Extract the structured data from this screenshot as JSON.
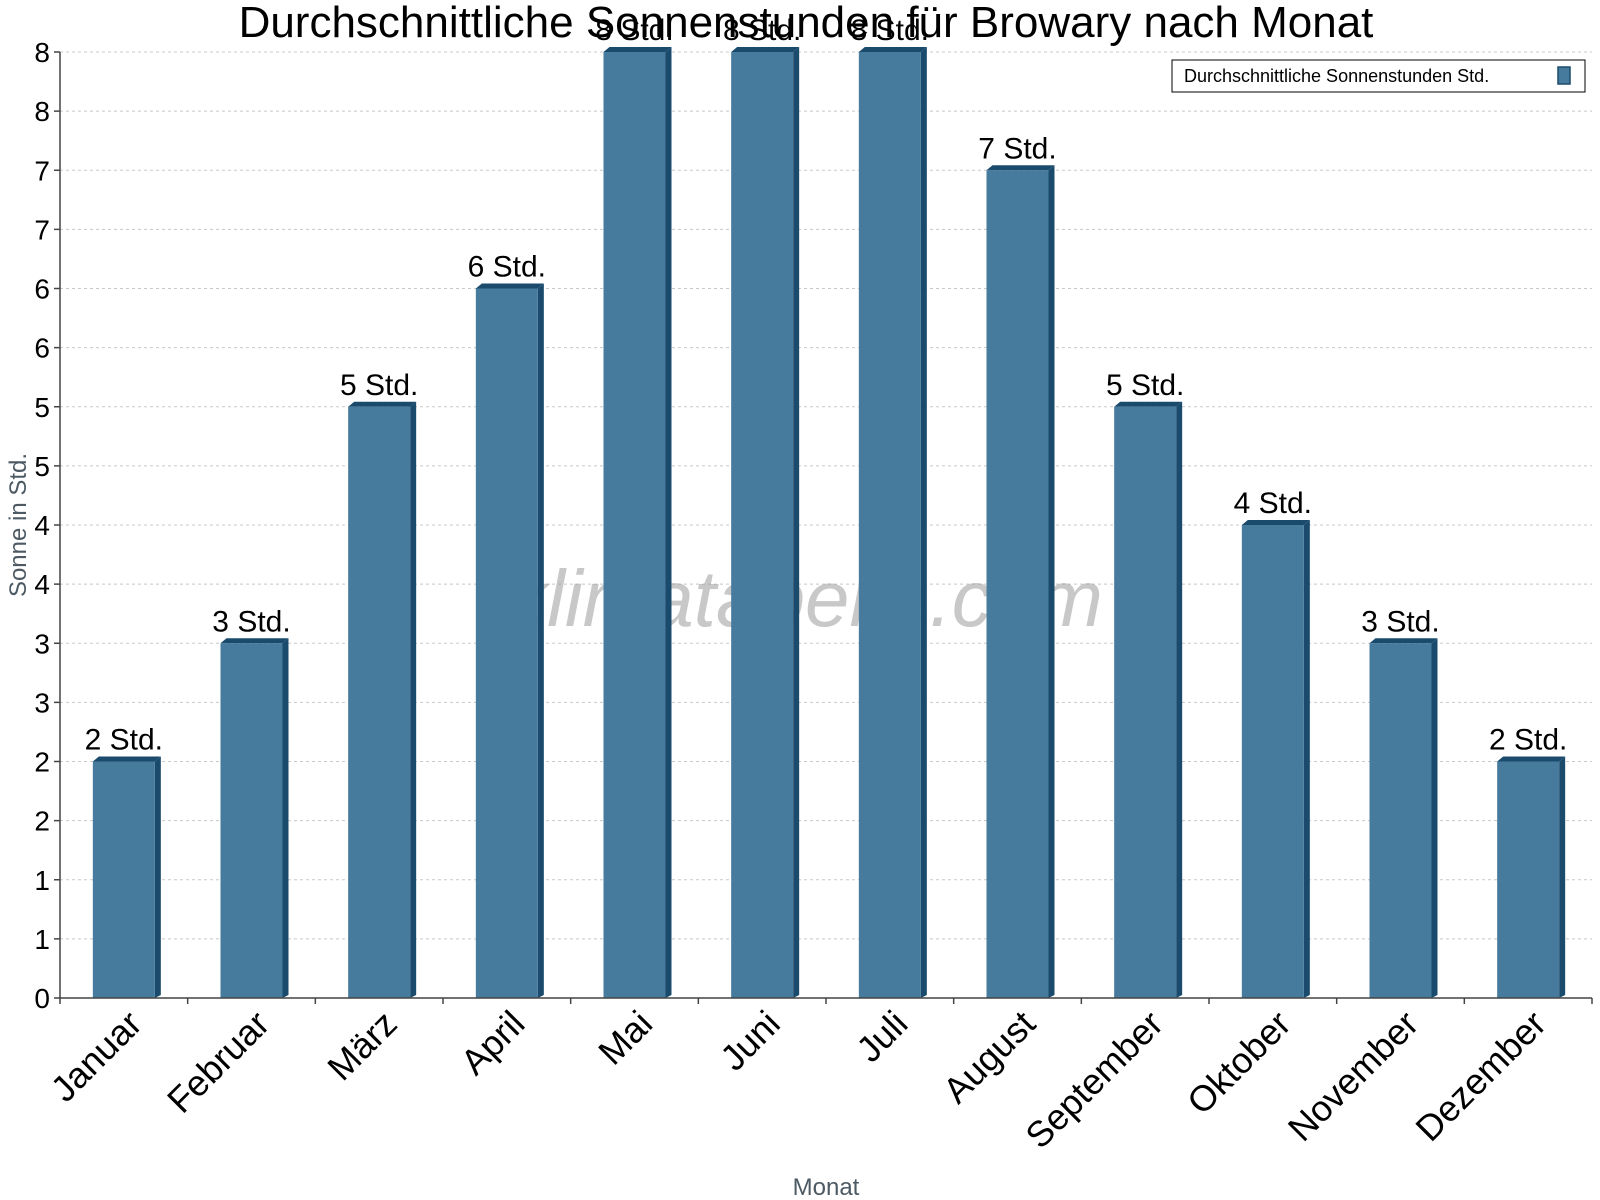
{
  "chart_data": {
    "type": "bar",
    "title": "Durchschnittliche Sonnenstunden für Browary nach Monat",
    "xlabel": "Monat",
    "ylabel": "Sonne in Std.",
    "categories": [
      "Januar",
      "Februar",
      "März",
      "April",
      "Mai",
      "Juni",
      "Juli",
      "August",
      "September",
      "Oktober",
      "November",
      "Dezember"
    ],
    "series": [
      {
        "name": "Durchschnittliche Sonnenstunden Std.",
        "values": [
          2,
          3,
          5,
          6,
          8,
          8,
          8,
          7,
          5,
          4,
          3,
          2
        ],
        "labels": [
          "2 Std.",
          "3 Std.",
          "5 Std.",
          "6 Std.",
          "8 Std.",
          "8 Std.",
          "8 Std.",
          "7 Std.",
          "5 Std.",
          "4 Std.",
          "3 Std.",
          "2 Std."
        ],
        "color": "#467b9d"
      }
    ],
    "yticks": [
      "0",
      "1",
      "1",
      "2",
      "2",
      "3",
      "3",
      "4",
      "4",
      "5",
      "5",
      "6",
      "6",
      "7",
      "7",
      "8",
      "8"
    ],
    "ylim": [
      0,
      8
    ],
    "grid": true,
    "legend_position": "top-right",
    "watermark": "klimatabelle.com"
  }
}
